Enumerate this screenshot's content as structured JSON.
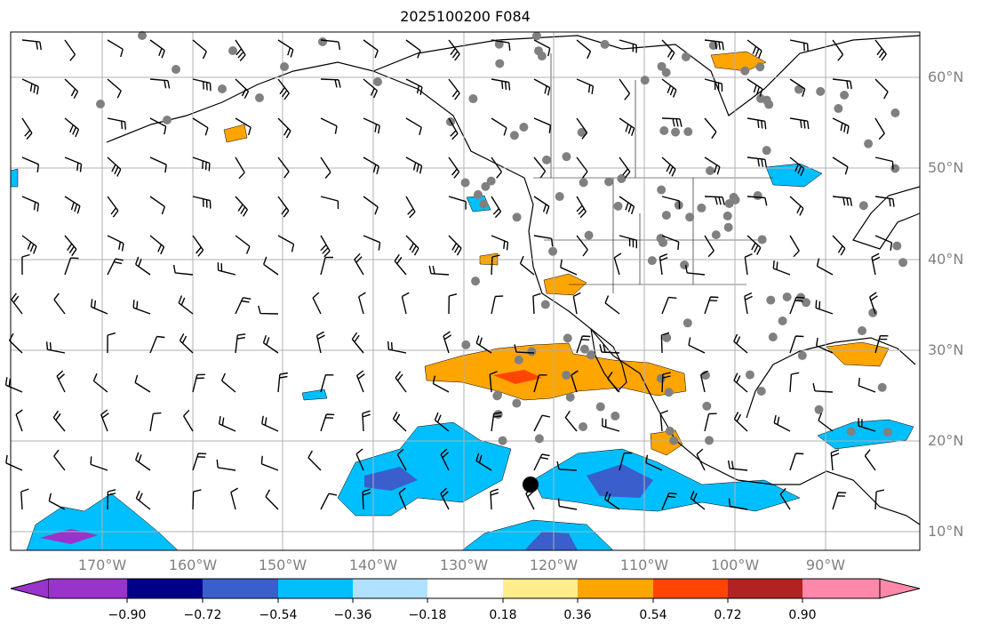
{
  "title": "2025100200 F084",
  "lat_labels": [
    "60°N",
    "50°N",
    "40°N",
    "30°N",
    "20°N",
    "10°N"
  ],
  "lon_labels": [
    "170°W",
    "160°W",
    "150°W",
    "140°W",
    "130°W",
    "120°W",
    "110°W",
    "100°W",
    "90°W"
  ],
  "colorbar": {
    "ticks": [
      "−0.90",
      "−0.72",
      "−0.54",
      "−0.36",
      "−0.18",
      "0.18",
      "0.36",
      "0.54",
      "0.72",
      "0.90"
    ],
    "colors": [
      "#9933cc",
      "#000088",
      "#3a5fcd",
      "#00bfff",
      "#b0e2ff",
      "#ffffff",
      "#ffec8b",
      "#ffa500",
      "#ff4500",
      "#b22222",
      "#ff88aa"
    ]
  }
}
